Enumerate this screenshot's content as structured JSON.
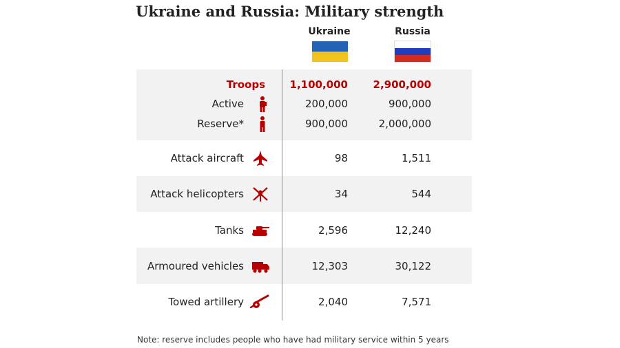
{
  "title": "Ukraine and Russia: Military strength",
  "columns": [
    "Ukraine",
    "Russia"
  ],
  "flags": {
    "ukraine": [
      "#2462b6",
      "#f2c31c"
    ],
    "russia": [
      "#ffffff",
      "#1d3fbf",
      "#d52b1e"
    ]
  },
  "colors": {
    "accent": "#b80000",
    "band_light": "#f2f2f2",
    "band_white": "#ffffff"
  },
  "chart_data": {
    "type": "table",
    "title": "Ukraine and Russia: Military strength",
    "columns": [
      "Ukraine",
      "Russia"
    ],
    "rows": [
      {
        "label": "Troops",
        "icon": "",
        "ukraine": "1,100,000",
        "russia": "2,900,000",
        "highlight": true
      },
      {
        "label": "Active",
        "icon": "soldier-icon",
        "ukraine": "200,000",
        "russia": "900,000"
      },
      {
        "label": "Reserve*",
        "icon": "person-icon",
        "ukraine": "900,000",
        "russia": "2,000,000"
      },
      {
        "label": "Attack aircraft",
        "icon": "jet-icon",
        "ukraine": "98",
        "russia": "1,511"
      },
      {
        "label": "Attack helicopters",
        "icon": "helicopter-icon",
        "ukraine": "34",
        "russia": "544"
      },
      {
        "label": "Tanks",
        "icon": "tank-icon",
        "ukraine": "2,596",
        "russia": "12,240"
      },
      {
        "label": "Armoured vehicles",
        "icon": "armoured-vehicle-icon",
        "ukraine": "12,303",
        "russia": "30,122"
      },
      {
        "label": "Towed artillery",
        "icon": "artillery-icon",
        "ukraine": "2,040",
        "russia": "7,571"
      }
    ]
  },
  "note": "Note: reserve includes people who have had military service within 5 years"
}
